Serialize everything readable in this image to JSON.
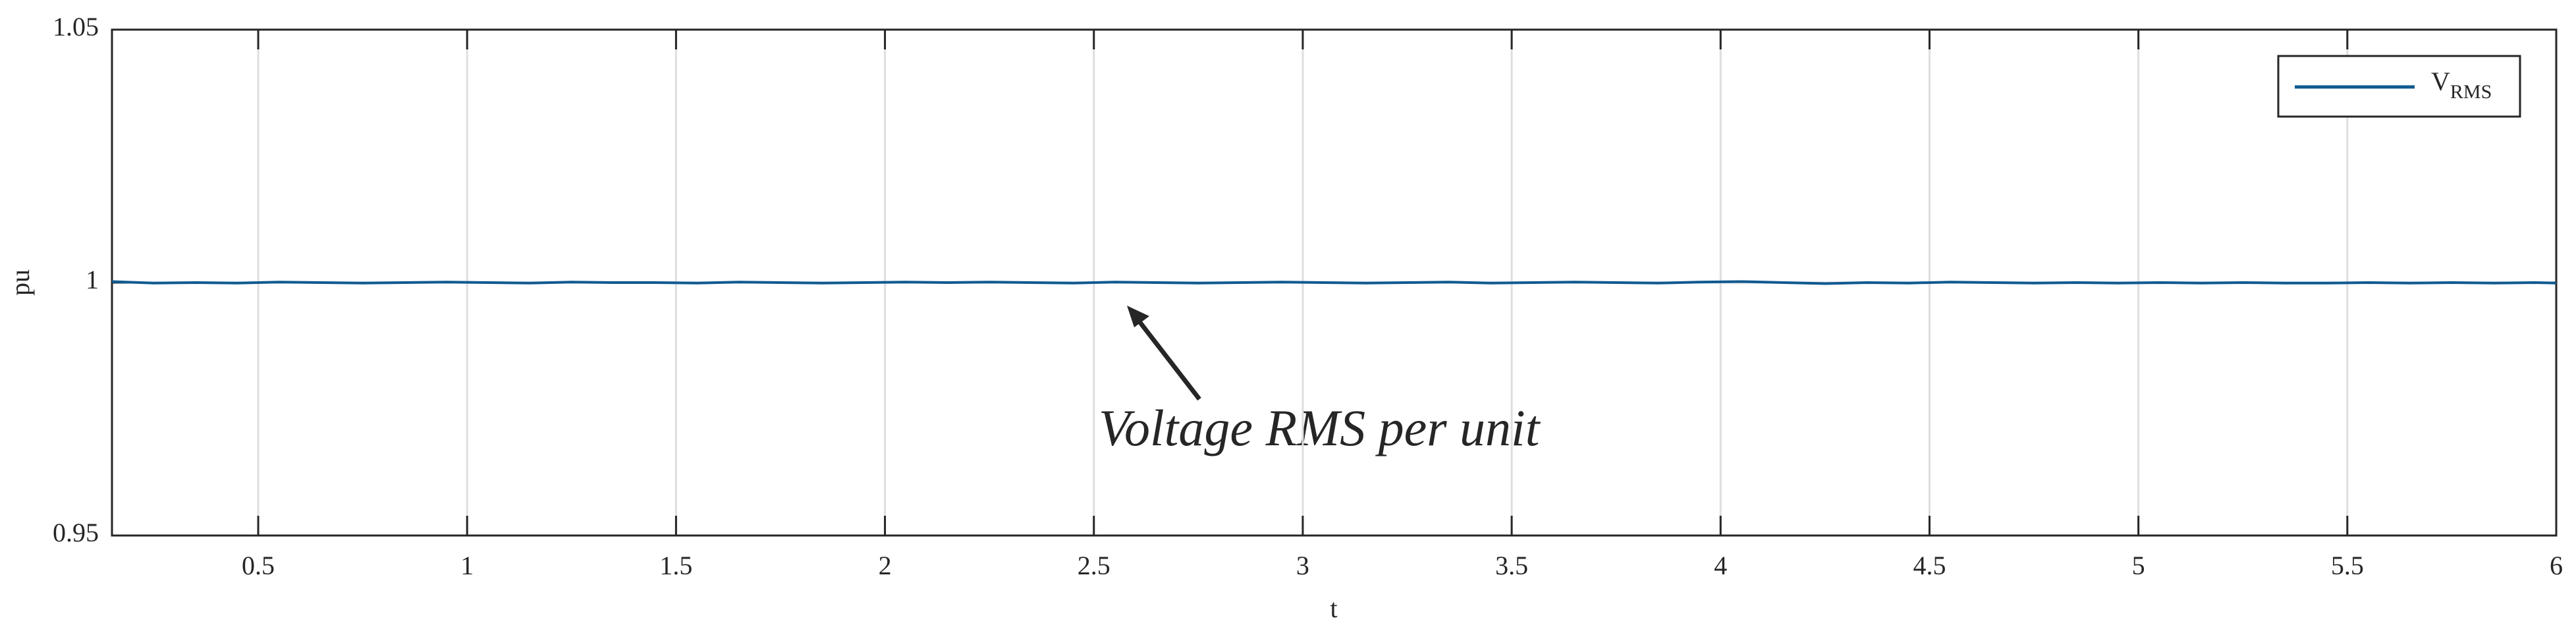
{
  "chart_data": {
    "type": "line",
    "x": [
      0.15,
      0.25,
      0.35,
      0.45,
      0.55,
      0.65,
      0.75,
      0.85,
      0.95,
      1.05,
      1.15,
      1.25,
      1.35,
      1.45,
      1.55,
      1.65,
      1.75,
      1.85,
      1.95,
      2.05,
      2.15,
      2.25,
      2.35,
      2.45,
      2.55,
      2.65,
      2.75,
      2.85,
      2.95,
      3.05,
      3.15,
      3.25,
      3.35,
      3.45,
      3.55,
      3.65,
      3.75,
      3.85,
      3.95,
      4.05,
      4.15,
      4.25,
      4.35,
      4.45,
      4.55,
      4.65,
      4.75,
      4.85,
      4.95,
      5.05,
      5.15,
      5.25,
      5.35,
      5.45,
      5.55,
      5.65,
      5.75,
      5.85,
      5.95,
      6
    ],
    "series": [
      {
        "name": "V",
        "name_subscript": "RMS",
        "color": "#0f5a8f",
        "values": [
          1.0002,
          0.9999,
          1.0,
          0.9999,
          1.0001,
          1.0,
          0.9999,
          1.0,
          1.0001,
          1.0,
          0.9999,
          1.0001,
          1.0,
          1.0,
          0.9999,
          1.0001,
          1.0,
          0.9999,
          1.0,
          1.0001,
          1.0,
          1.0001,
          1.0,
          0.9999,
          1.0001,
          1.0,
          0.9999,
          1.0,
          1.0001,
          1.0,
          0.9999,
          1.0,
          1.0001,
          0.9999,
          1.0,
          1.0001,
          1.0,
          0.9999,
          1.0001,
          1.0002,
          1.0,
          0.9998,
          1.0,
          0.9999,
          1.0001,
          1.0,
          0.9999,
          1.0,
          0.9999,
          1.0,
          0.9999,
          1.0,
          0.9999,
          0.9999,
          1.0,
          0.9999,
          1.0,
          0.9999,
          1.0,
          0.9999
        ]
      }
    ],
    "xlabel": "t",
    "ylabel": "pu",
    "xlim": [
      0.15,
      6
    ],
    "xticks": [
      0.5,
      1,
      1.5,
      2,
      2.5,
      3,
      3.5,
      4,
      4.5,
      5,
      5.5,
      6
    ],
    "ylim": [
      0.95,
      1.05
    ],
    "yticks": [
      0.95,
      1,
      1.05
    ],
    "grid": true,
    "legend": "upper right",
    "annotation": "Voltage RMS per unit"
  }
}
